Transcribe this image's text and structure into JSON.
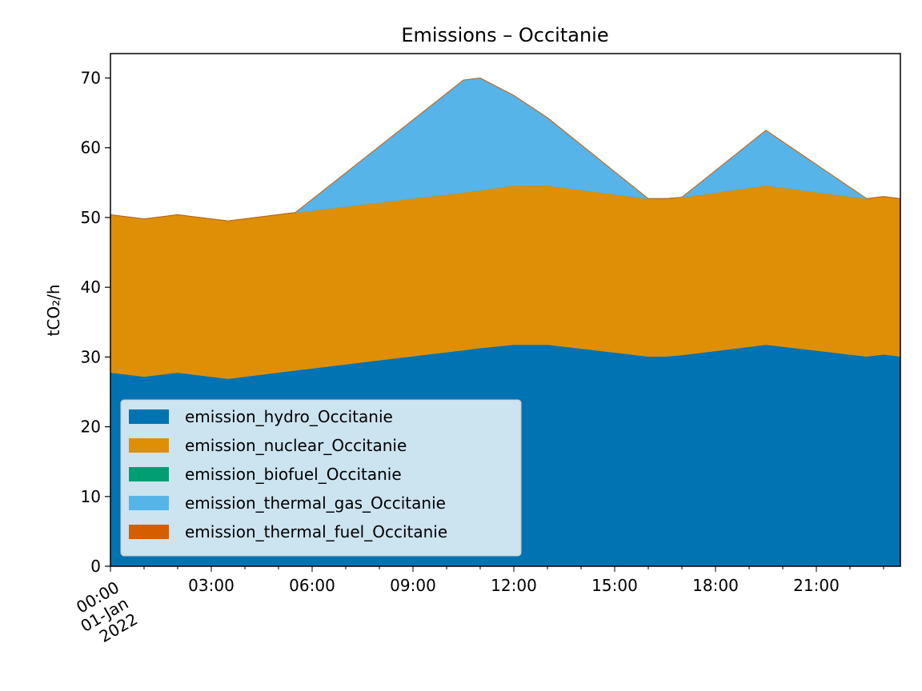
{
  "chart_data": {
    "type": "area",
    "stacked": true,
    "title": "Emissions – Occitanie",
    "xlabel": "",
    "ylabel": "tCO₂/h",
    "x_first_tick_label": [
      "00:00",
      "01-Jan",
      "2022"
    ],
    "x_tick_labels": [
      "03:00",
      "06:00",
      "09:00",
      "12:00",
      "15:00",
      "18:00",
      "21:00"
    ],
    "y_ticks": [
      0,
      10,
      20,
      30,
      40,
      50,
      60,
      70
    ],
    "xlim": [
      "2022-01-01 00:00",
      "2022-01-01 23:30"
    ],
    "ylim": [
      0,
      73.5
    ],
    "grid": false,
    "legend_position": "lower-left",
    "x": [
      "00:00",
      "01:00",
      "02:00",
      "03:30",
      "05:30",
      "10:30",
      "11:00",
      "12:00",
      "13:00",
      "16:00",
      "16:30",
      "17:00",
      "19:30",
      "22:30",
      "23:00",
      "23:30"
    ],
    "series": [
      {
        "name": "emission_hydro_Occitanie",
        "color": "#0173b2",
        "values": [
          27.8,
          27.2,
          27.8,
          26.9,
          28.1,
          31.0,
          31.3,
          31.8,
          31.8,
          30.1,
          30.1,
          30.3,
          31.8,
          30.1,
          30.4,
          30.1
        ]
      },
      {
        "name": "emission_nuclear_Occitanie",
        "color": "#de8f05",
        "values": [
          22.6,
          22.6,
          22.6,
          22.6,
          22.6,
          22.6,
          22.6,
          22.8,
          22.8,
          22.6,
          22.6,
          22.6,
          22.8,
          22.6,
          22.6,
          22.6
        ]
      },
      {
        "name": "emission_biofuel_Occitanie",
        "color": "#029e73",
        "values": [
          0,
          0,
          0,
          0,
          0,
          0,
          0,
          0,
          0,
          0,
          0,
          0,
          0,
          0,
          0,
          0
        ]
      },
      {
        "name": "emission_thermal_gas_Occitanie",
        "color": "#56b4e9",
        "values": [
          0,
          0,
          0,
          0,
          0,
          16.1,
          16.1,
          12.9,
          9.7,
          0,
          0,
          0,
          7.9,
          0,
          0,
          0
        ]
      },
      {
        "name": "emission_thermal_fuel_Occitanie",
        "color": "#d55e00",
        "values": [
          0,
          0,
          0,
          0,
          0,
          0,
          0,
          0,
          0,
          0,
          0,
          0,
          0,
          0,
          0,
          0
        ]
      }
    ]
  }
}
